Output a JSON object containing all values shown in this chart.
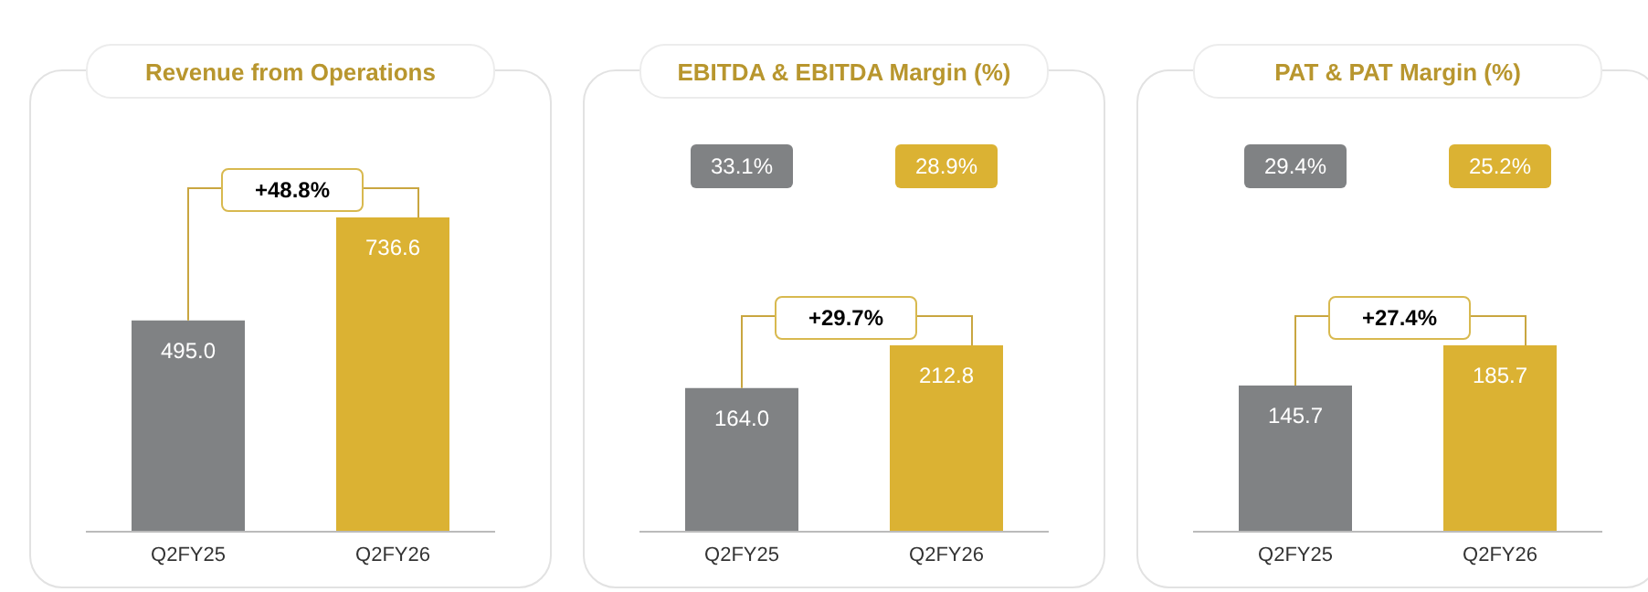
{
  "chart_data": [
    {
      "type": "bar",
      "title": "Revenue from Operations",
      "categories": [
        "Q2FY25",
        "Q2FY26"
      ],
      "values": [
        495.0,
        736.6
      ],
      "colors": [
        "#808284",
        "#dbb233"
      ],
      "value_labels": [
        "495.0",
        "736.6"
      ],
      "annotations": [
        "+48.8%"
      ]
    },
    {
      "type": "bar",
      "title": "EBITDA & EBITDA Margin (%)",
      "categories": [
        "Q2FY25",
        "Q2FY26"
      ],
      "values": [
        164.0,
        212.8
      ],
      "colors": [
        "#808284",
        "#dbb233"
      ],
      "value_labels": [
        "164.0",
        "212.8"
      ],
      "annotations": [
        "+29.7%",
        "33.1%",
        "28.9%"
      ]
    },
    {
      "type": "bar",
      "title": "PAT & PAT Margin (%)",
      "categories": [
        "Q2FY25",
        "Q2FY26"
      ],
      "values": [
        145.7,
        185.7
      ],
      "colors": [
        "#808284",
        "#dbb233"
      ],
      "value_labels": [
        "145.7",
        "185.7"
      ],
      "annotations": [
        "+27.4%",
        "29.4%",
        "25.2%"
      ]
    }
  ]
}
